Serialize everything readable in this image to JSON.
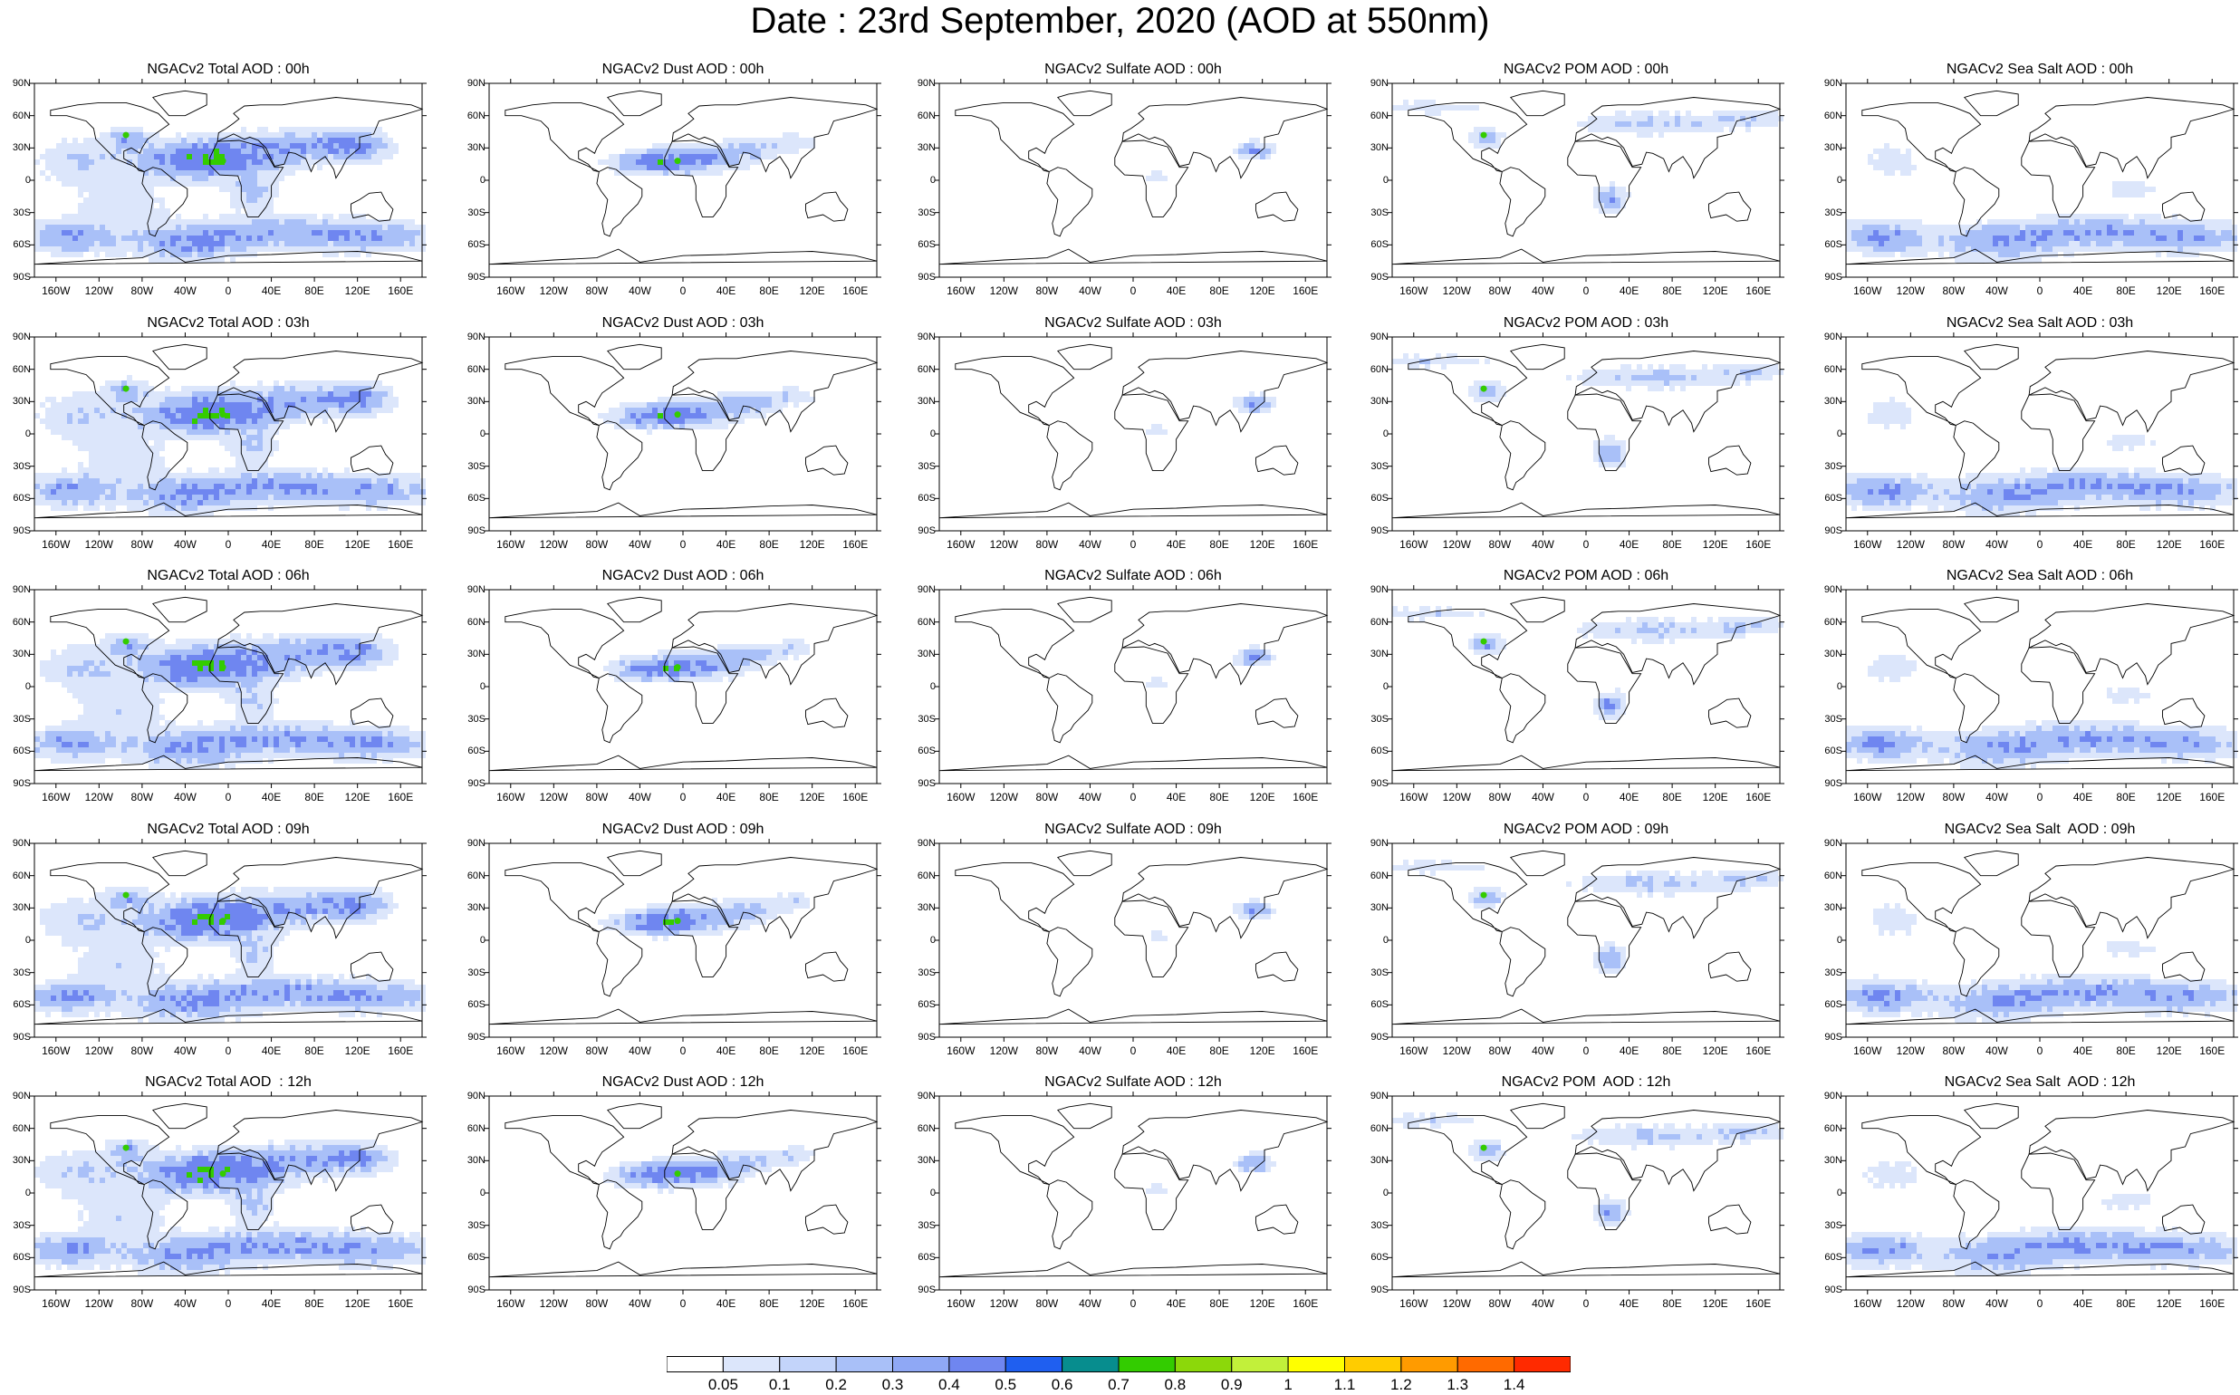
{
  "title": "Date : 23rd  September, 2020 (AOD at 550nm)",
  "rows": [
    [
      "NGACv2 Total AOD : 00h",
      "NGACv2 Dust AOD : 00h",
      "NGACv2 Sulfate AOD : 00h",
      "NGACv2 POM AOD : 00h",
      "NGACv2 Sea Salt AOD : 00h"
    ],
    [
      "NGACv2 Total AOD : 03h",
      "NGACv2 Dust AOD : 03h",
      "NGACv2 Sulfate AOD : 03h",
      "NGACv2 POM AOD : 03h",
      "NGACv2 Sea Salt AOD : 03h"
    ],
    [
      "NGACv2 Total AOD : 06h",
      "NGACv2 Dust AOD : 06h",
      "NGACv2 Sulfate AOD : 06h",
      "NGACv2 POM AOD : 06h",
      "NGACv2 Sea Salt AOD : 06h"
    ],
    [
      "NGACv2 Total AOD : 09h",
      "NGACv2 Dust AOD : 09h",
      "NGACv2 Sulfate AOD : 09h",
      "NGACv2 POM AOD : 09h",
      "NGACv2 Sea Salt  AOD : 09h"
    ],
    [
      "NGACv2 Total AOD  : 12h",
      "NGACv2 Dust AOD : 12h",
      "NGACv2 Sulfate AOD : 12h",
      "NGACv2 POM  AOD : 12h",
      "NGACv2 Sea Salt  AOD : 12h"
    ]
  ],
  "lat_labels": [
    "90N",
    "60N",
    "30N",
    "0",
    "30S",
    "60S",
    "90S"
  ],
  "lon_labels": [
    "160W",
    "120W",
    "80W",
    "40W",
    "0",
    "40E",
    "80E",
    "120E",
    "160E"
  ],
  "colorbar": {
    "labels": [
      "0.05",
      "0.1",
      "0.2",
      "0.3",
      "0.4",
      "0.5",
      "0.6",
      "0.7",
      "0.8",
      "0.9",
      "1",
      "1.1",
      "1.2",
      "1.3",
      "1.4"
    ],
    "colors": [
      "#ffffff",
      "#dce6fb",
      "#c3d4fa",
      "#a9c0f8",
      "#8fa8f5",
      "#6f86f0",
      "#1f5ff0",
      "#078d8e",
      "#33cc00",
      "#8cd80a",
      "#c2f03a",
      "#ffff00",
      "#ffcc00",
      "#ff9b00",
      "#ff6a00",
      "#ff2a00"
    ]
  },
  "colors": {
    "land_outline": "#000000",
    "light_aerosol": "#dce6fb",
    "medium_aerosol": "#a9c0f8",
    "heavy_aerosol": "#6f86f0",
    "peak_aerosol": "#33cc00"
  }
}
